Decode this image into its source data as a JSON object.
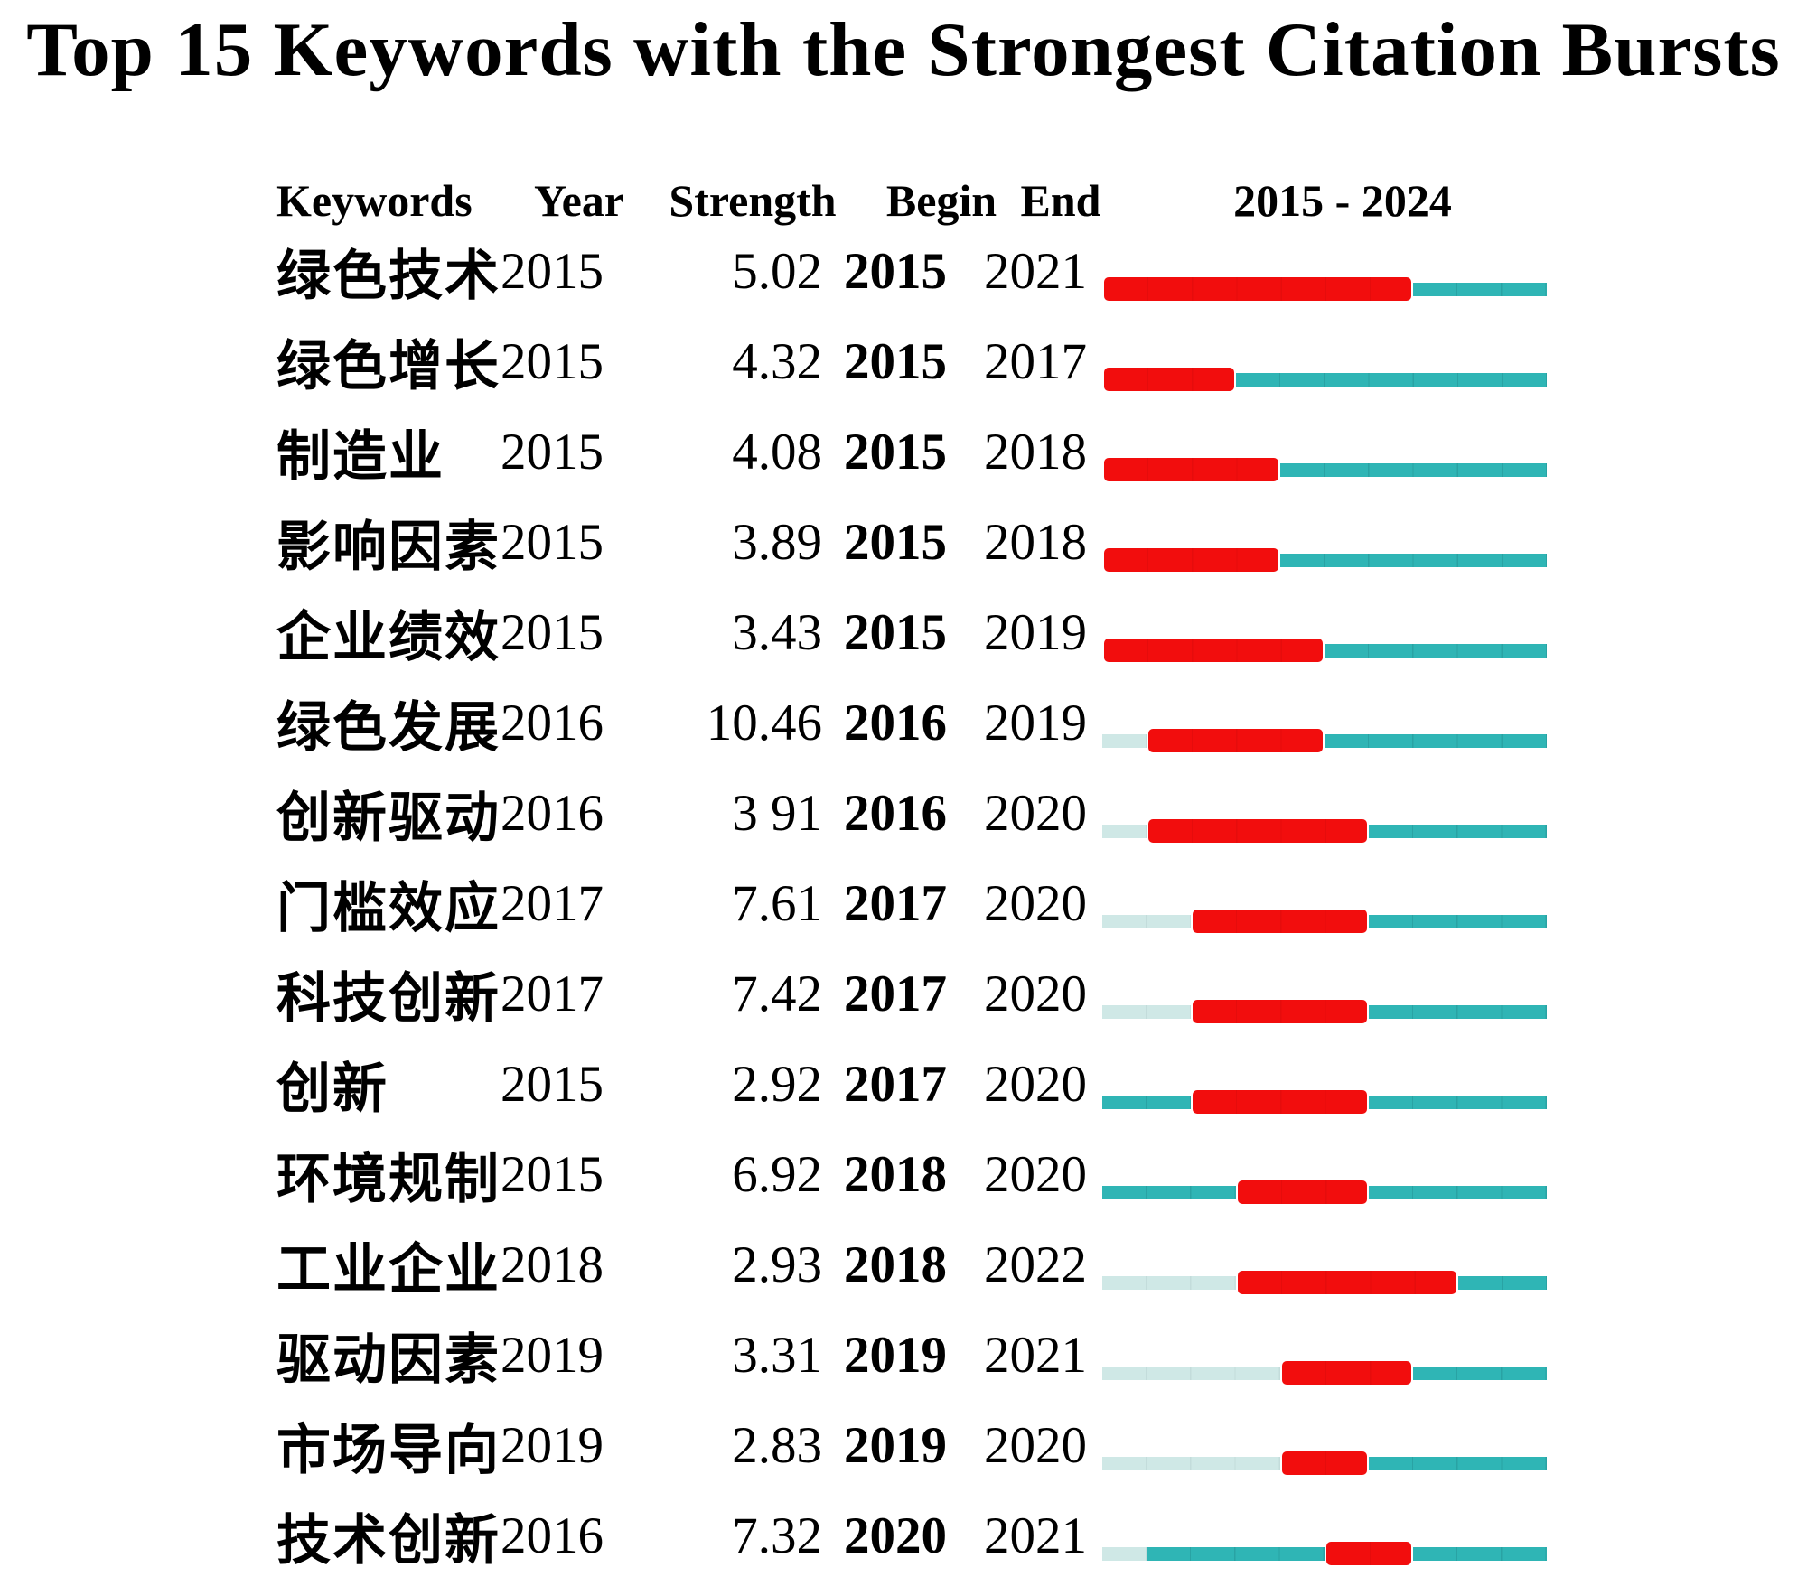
{
  "title": "Top 15 Keywords with the Strongest Citation Bursts",
  "header": {
    "keywords": "Keywords",
    "year": "Year",
    "strength": "Strength",
    "begin": "Begin",
    "end": "End",
    "range": "2015 - 2024"
  },
  "colors": {
    "burst": "#f20d0d",
    "active": "#2fb5b5",
    "inactive": "#cfe8e6"
  },
  "timeline": {
    "start_year": 2015,
    "end_year": 2024,
    "cells": 10
  },
  "rows": [
    {
      "keyword": "绿色技术",
      "year": "2015",
      "strength": "5.02",
      "begin": "2015",
      "end": "2021",
      "segments": [
        {
          "color": "burst",
          "years": 7
        },
        {
          "color": "active",
          "years": 3
        }
      ]
    },
    {
      "keyword": "绿色增长",
      "year": "2015",
      "strength": "4.32",
      "begin": "2015",
      "end": "2017",
      "segments": [
        {
          "color": "burst",
          "years": 3
        },
        {
          "color": "active",
          "years": 7
        }
      ]
    },
    {
      "keyword": "制造业",
      "year": "2015",
      "strength": "4.08",
      "begin": "2015",
      "end": "2018",
      "segments": [
        {
          "color": "burst",
          "years": 4
        },
        {
          "color": "active",
          "years": 6
        }
      ]
    },
    {
      "keyword": "影响因素",
      "year": "2015",
      "strength": "3.89",
      "begin": "2015",
      "end": "2018",
      "segments": [
        {
          "color": "burst",
          "years": 4
        },
        {
          "color": "active",
          "years": 6
        }
      ]
    },
    {
      "keyword": "企业绩效",
      "year": "2015",
      "strength": "3.43",
      "begin": "2015",
      "end": "2019",
      "segments": [
        {
          "color": "burst",
          "years": 5
        },
        {
          "color": "active",
          "years": 5
        }
      ]
    },
    {
      "keyword": "绿色发展",
      "year": "2016",
      "strength": "10.46",
      "begin": "2016",
      "end": "2019",
      "segments": [
        {
          "color": "inactive",
          "years": 1
        },
        {
          "color": "burst",
          "years": 4
        },
        {
          "color": "active",
          "years": 5
        }
      ]
    },
    {
      "keyword": "创新驱动",
      "year": "2016",
      "strength": "3 91",
      "begin": "2016",
      "end": "2020",
      "segments": [
        {
          "color": "inactive",
          "years": 1
        },
        {
          "color": "burst",
          "years": 5
        },
        {
          "color": "active",
          "years": 4
        }
      ]
    },
    {
      "keyword": "门槛效应",
      "year": "2017",
      "strength": "7.61",
      "begin": "2017",
      "end": "2020",
      "segments": [
        {
          "color": "inactive",
          "years": 2
        },
        {
          "color": "burst",
          "years": 4
        },
        {
          "color": "active",
          "years": 4
        }
      ]
    },
    {
      "keyword": "科技创新",
      "year": "2017",
      "strength": "7.42",
      "begin": "2017",
      "end": "2020",
      "segments": [
        {
          "color": "inactive",
          "years": 2
        },
        {
          "color": "burst",
          "years": 4
        },
        {
          "color": "active",
          "years": 4
        }
      ]
    },
    {
      "keyword": "创新",
      "year": "2015",
      "strength": "2.92",
      "begin": "2017",
      "end": "2020",
      "segments": [
        {
          "color": "active",
          "years": 2
        },
        {
          "color": "burst",
          "years": 4
        },
        {
          "color": "active",
          "years": 4
        }
      ]
    },
    {
      "keyword": "环境规制",
      "year": "2015",
      "strength": "6.92",
      "begin": "2018",
      "end": "2020",
      "segments": [
        {
          "color": "active",
          "years": 3
        },
        {
          "color": "burst",
          "years": 3
        },
        {
          "color": "active",
          "years": 4
        }
      ]
    },
    {
      "keyword": "工业企业",
      "year": "2018",
      "strength": "2.93",
      "begin": "2018",
      "end": "2022",
      "segments": [
        {
          "color": "inactive",
          "years": 3
        },
        {
          "color": "burst",
          "years": 5
        },
        {
          "color": "active",
          "years": 2
        }
      ]
    },
    {
      "keyword": "驱动因素",
      "year": "2019",
      "strength": "3.31",
      "begin": "2019",
      "end": "2021",
      "segments": [
        {
          "color": "inactive",
          "years": 4
        },
        {
          "color": "burst",
          "years": 3
        },
        {
          "color": "active",
          "years": 3
        }
      ]
    },
    {
      "keyword": "市场导向",
      "year": "2019",
      "strength": "2.83",
      "begin": "2019",
      "end": "2020",
      "segments": [
        {
          "color": "inactive",
          "years": 4
        },
        {
          "color": "burst",
          "years": 2
        },
        {
          "color": "active",
          "years": 4
        }
      ]
    },
    {
      "keyword": "技术创新",
      "year": "2016",
      "strength": "7.32",
      "begin": "2020",
      "end": "2021",
      "segments": [
        {
          "color": "inactive",
          "years": 1
        },
        {
          "color": "active",
          "years": 4
        },
        {
          "color": "burst",
          "years": 2
        },
        {
          "color": "active",
          "years": 3
        }
      ]
    }
  ],
  "chart_data": {
    "type": "table",
    "title": "Top 15 Keywords with the Strongest Citation Bursts",
    "columns": [
      "Keywords",
      "Year",
      "Strength",
      "Begin",
      "End"
    ],
    "timeline_range": [
      2015,
      2024
    ],
    "rows": [
      [
        "绿色技术",
        "2015",
        "5.02",
        "2015",
        "2021"
      ],
      [
        "绿色增长",
        "2015",
        "4.32",
        "2015",
        "2017"
      ],
      [
        "制造业",
        "2015",
        "4.08",
        "2015",
        "2018"
      ],
      [
        "影响因素",
        "2015",
        "3.89",
        "2015",
        "2018"
      ],
      [
        "企业绩效",
        "2015",
        "3.43",
        "2015",
        "2019"
      ],
      [
        "绿色发展",
        "2016",
        "10.46",
        "2016",
        "2019"
      ],
      [
        "创新驱动",
        "2016",
        "3 91",
        "2016",
        "2020"
      ],
      [
        "门槛效应",
        "2017",
        "7.61",
        "2017",
        "2020"
      ],
      [
        "科技创新",
        "2017",
        "7.42",
        "2017",
        "2020"
      ],
      [
        "创新",
        "2015",
        "2.92",
        "2017",
        "2020"
      ],
      [
        "环境规制",
        "2015",
        "6.92",
        "2018",
        "2020"
      ],
      [
        "工业企业",
        "2018",
        "2.93",
        "2018",
        "2022"
      ],
      [
        "驱动因素",
        "2019",
        "3.31",
        "2019",
        "2021"
      ],
      [
        "市场导向",
        "2019",
        "2.83",
        "2019",
        "2020"
      ],
      [
        "技术创新",
        "2016",
        "7.32",
        "2020",
        "2021"
      ]
    ]
  }
}
